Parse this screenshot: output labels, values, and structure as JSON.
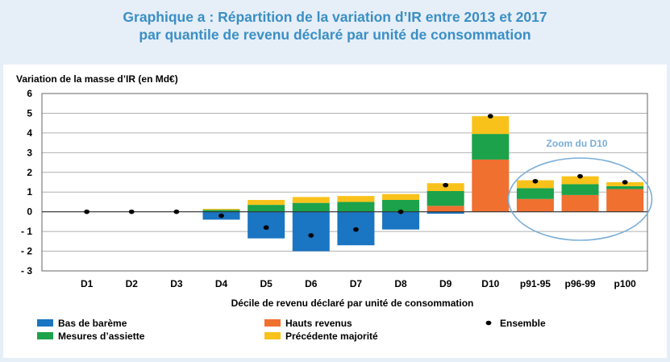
{
  "title_line1": "Graphique a : Répartition de la variation d’IR entre 2013 et 2017",
  "title_line2": "par quantile de revenu déclaré par unité de consommation",
  "colors": {
    "bas_de_bareme": "#1a75c2",
    "mesures_assiette": "#1ba24a",
    "hauts_revenus": "#f07030",
    "precedente_majorite": "#f9c21b",
    "ensemble": "#000000",
    "zoom": "#7aaed8"
  },
  "chart_data": {
    "type": "bar",
    "stacked": true,
    "ylabel": "Variation de la masse d’IR (en Md€)",
    "xlabel": "Décile de revenu déclaré par unité de consommation",
    "ylim": [
      -3,
      6
    ],
    "yticks": [
      "6",
      "5",
      "4",
      "3",
      "2",
      "1",
      "0",
      "- 1",
      "- 2",
      "- 3"
    ],
    "ytick_values": [
      6,
      5,
      4,
      3,
      2,
      1,
      0,
      -1,
      -2,
      -3
    ],
    "grid": true,
    "legend_position": "bottom",
    "categories": [
      "D1",
      "D2",
      "D3",
      "D4",
      "D5",
      "D6",
      "D7",
      "D8",
      "D9",
      "D10",
      "p91-95",
      "p96-99",
      "p100"
    ],
    "series": [
      {
        "name": "Bas de barème",
        "key": "bas_de_bareme",
        "values": [
          0,
          0,
          0,
          -0.4,
          -1.35,
          -2.0,
          -1.7,
          -0.9,
          -0.1,
          0,
          0,
          0,
          0
        ]
      },
      {
        "name": "Hauts revenus",
        "key": "hauts_revenus",
        "values": [
          0,
          0,
          0,
          0,
          0,
          0,
          0,
          0,
          0.3,
          2.65,
          0.65,
          0.85,
          1.15
        ]
      },
      {
        "name": "Mesures d’assiette",
        "key": "mesures_assiette",
        "values": [
          0,
          0,
          0,
          0.1,
          0.35,
          0.45,
          0.5,
          0.6,
          0.75,
          1.3,
          0.55,
          0.55,
          0.15
        ]
      },
      {
        "name": "Précédente majorité",
        "key": "precedente_majorite",
        "values": [
          0,
          0,
          0,
          0.05,
          0.25,
          0.3,
          0.3,
          0.3,
          0.4,
          0.9,
          0.4,
          0.4,
          0.2
        ]
      }
    ],
    "ensemble": {
      "name": "Ensemble",
      "values": [
        0,
        0,
        0,
        -0.2,
        -0.8,
        -1.2,
        -0.9,
        0,
        1.35,
        4.85,
        1.55,
        1.8,
        1.5
      ]
    },
    "annotation": "Zoom du D10"
  }
}
